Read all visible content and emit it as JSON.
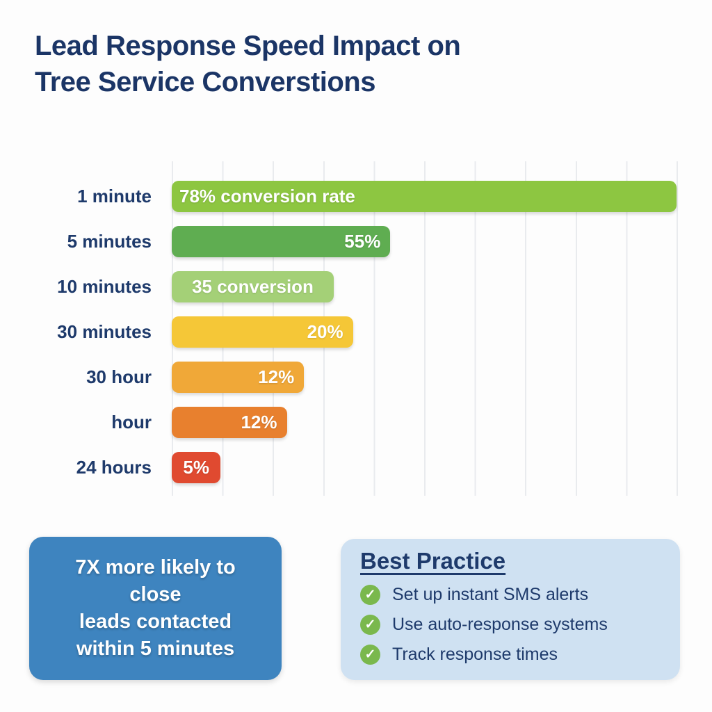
{
  "page": {
    "title_lines": [
      "Lead Response Speed Impact on",
      "Tree Service Converstions"
    ],
    "title_color": "#1b3566",
    "background": "#fdfdfd"
  },
  "chart_data": {
    "type": "bar",
    "orientation": "horizontal",
    "title": "Lead Response Speed Impact on Tree Service Converstions",
    "categories": [
      "1 minute",
      "5 minutes",
      "10 minutes",
      "30 minutes",
      "30 hour",
      "hour",
      "24 hours"
    ],
    "values": [
      78,
      55,
      35,
      20,
      12,
      12,
      5
    ],
    "bar_labels": [
      "78% conversion rate",
      "55%",
      "35 conversion",
      "20%",
      "12%",
      "12%",
      "5%"
    ],
    "bar_colors": [
      "#8dc641",
      "#5fad51",
      "#a4d077",
      "#f5c737",
      "#f0a838",
      "#e8802e",
      "#e04a30"
    ],
    "bar_width_pct": [
      100,
      43.3,
      32.1,
      35.9,
      26.2,
      22.8,
      9.7
    ],
    "bar_label_align": [
      "left",
      "right",
      "center",
      "right",
      "right",
      "right",
      "center"
    ],
    "category_label_color": "#1e3a6b",
    "grid": true,
    "gridline_count": 11,
    "gridline_color": "#e9ebee",
    "legend": false
  },
  "highlight_box": {
    "lines": [
      "7X more likely to",
      "close",
      "leads contacted",
      "within 5 minutes"
    ],
    "bg_color": "#3e84bf",
    "text_color": "#ffffff"
  },
  "best_practice": {
    "title": "Best Practice",
    "items": [
      "Set up instant SMS alerts",
      "Use auto-response systems",
      "Track response times"
    ],
    "bg_color": "#cfe1f2",
    "check_color": "#7ab84d",
    "text_color": "#1e3a6b"
  }
}
